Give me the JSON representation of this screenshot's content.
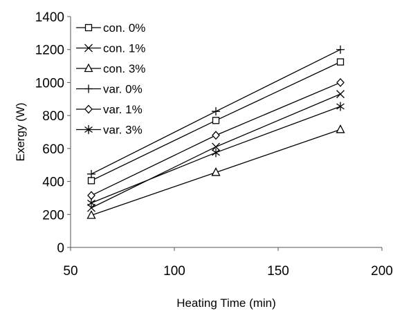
{
  "chart_data": {
    "type": "line",
    "title": "",
    "xlabel": "Heating Time (min)",
    "ylabel": "Exergy (W)",
    "xlim": [
      50,
      200
    ],
    "ylim": [
      0,
      1400
    ],
    "xticks": [
      "50",
      "100",
      "150",
      "200"
    ],
    "yticks": [
      "0",
      "200",
      "400",
      "600",
      "800",
      "1000",
      "1200",
      "1400"
    ],
    "grid": false,
    "legend_position": "top-left",
    "x": [
      60,
      120,
      180
    ],
    "series": [
      {
        "name": "con. 0%",
        "marker": "square",
        "values": [
          405,
          770,
          1125
        ]
      },
      {
        "name": "con. 1%",
        "marker": "x",
        "values": [
          240,
          610,
          930
        ]
      },
      {
        "name": "con. 3%",
        "marker": "triangle",
        "values": [
          195,
          455,
          715
        ]
      },
      {
        "name": "var. 0%",
        "marker": "plus",
        "values": [
          445,
          825,
          1200
        ]
      },
      {
        "name": "var. 1%",
        "marker": "diamond",
        "values": [
          315,
          680,
          1000
        ]
      },
      {
        "name": "var. 3%",
        "marker": "asterisk",
        "values": [
          270,
          575,
          855
        ]
      }
    ],
    "line_color": "#000000"
  }
}
